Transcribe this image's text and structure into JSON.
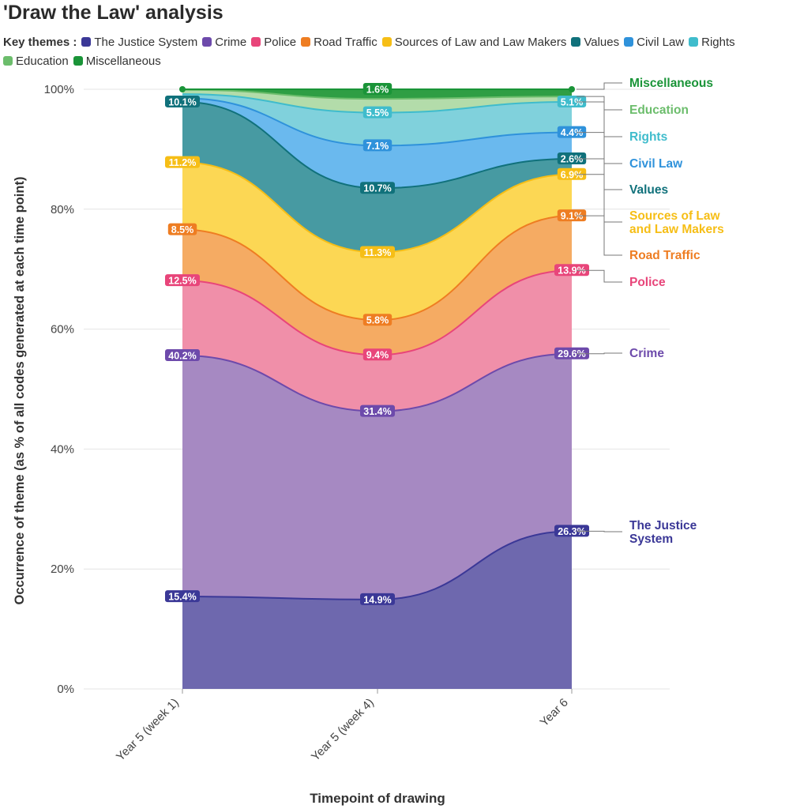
{
  "chart_data": {
    "type": "area",
    "title": "'Draw the Law' analysis",
    "legend_label": "Key themes :",
    "xlabel": "Timepoint of drawing",
    "ylabel": "Occurrence of theme (as % of all codes generated at each time point)",
    "categories": [
      "Year 5 (week 1)",
      "Year 5 (week 4)",
      "Year 6"
    ],
    "ylim": [
      0,
      100
    ],
    "yticks": [
      "0%",
      "20%",
      "40%",
      "60%",
      "80%",
      "100%"
    ],
    "stacked": true,
    "grid": true,
    "legend_position": "top",
    "series": [
      {
        "name": "The Justice System",
        "values": [
          15.4,
          14.9,
          26.3
        ],
        "labels": [
          "15.4%",
          "14.9%",
          "26.3%"
        ],
        "color": "#3b3897",
        "fill": "#6e68ae",
        "annotation": [
          "The Justice",
          "System"
        ]
      },
      {
        "name": "Crime",
        "values": [
          40.2,
          31.4,
          29.6
        ],
        "labels": [
          "40.2%",
          "31.4%",
          "29.6%"
        ],
        "color": "#6d4aab",
        "fill": "#a689c2",
        "annotation": [
          "Crime"
        ]
      },
      {
        "name": "Police",
        "values": [
          12.5,
          9.4,
          13.9
        ],
        "labels": [
          "12.5%",
          "9.4%",
          "13.9%"
        ],
        "color": "#e8457a",
        "fill": "#f08fa9",
        "annotation": [
          "Police"
        ]
      },
      {
        "name": "Road Traffic",
        "values": [
          8.5,
          5.8,
          9.1
        ],
        "labels": [
          "8.5%",
          "5.8%",
          "9.1%"
        ],
        "color": "#ee7d22",
        "fill": "#f5ab63",
        "annotation": [
          "Road Traffic"
        ]
      },
      {
        "name": "Sources of Law and Law Makers",
        "values": [
          11.2,
          11.3,
          6.9
        ],
        "labels": [
          "11.2%",
          "11.3%",
          "6.9%"
        ],
        "color": "#f6be16",
        "fill": "#fcd754",
        "annotation": [
          "Sources of Law",
          "and Law Makers"
        ]
      },
      {
        "name": "Values",
        "values": [
          10.1,
          10.7,
          2.6
        ],
        "labels": [
          "10.1%",
          "10.7%",
          "2.6%"
        ],
        "color": "#10717b",
        "fill": "#479aa2",
        "annotation": [
          "Values"
        ]
      },
      {
        "name": "Civil Law",
        "values": [
          0.6,
          7.1,
          4.4
        ],
        "labels": [
          "",
          "7.1%",
          "4.4%"
        ],
        "color": "#2f92db",
        "fill": "#6ab9ee",
        "annotation": [
          "Civil Law"
        ]
      },
      {
        "name": "Rights",
        "values": [
          0.7,
          5.5,
          5.1
        ],
        "labels": [
          "",
          "5.5%",
          "5.1%"
        ],
        "color": "#3fbccc",
        "fill": "#80d1dc",
        "annotation": [
          "Rights"
        ]
      },
      {
        "name": "Education",
        "values": [
          0.7,
          2.3,
          0.9
        ],
        "labels": [
          "",
          "",
          ""
        ],
        "color": "#6cbd6c",
        "fill": "#b3dcaa",
        "annotation": [
          "Education"
        ]
      },
      {
        "name": "Miscellaneous",
        "values": [
          0.1,
          1.6,
          1.2
        ],
        "labels": [
          "",
          "1.6%",
          ""
        ],
        "color": "#1a9438",
        "fill": "#2f9e44",
        "annotation": [
          "Miscellaneous"
        ]
      }
    ]
  }
}
